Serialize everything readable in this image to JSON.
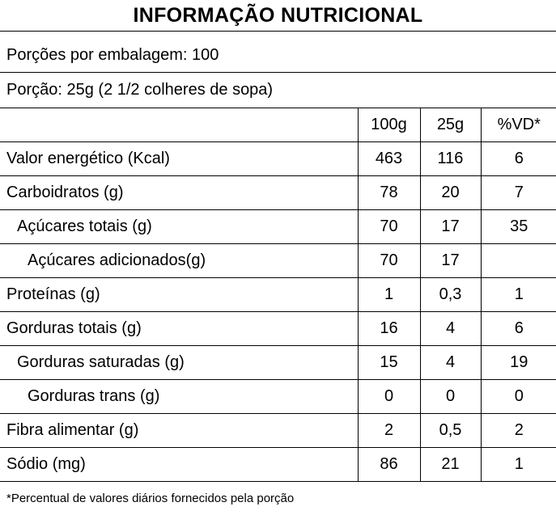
{
  "title": "INFORMAÇÃO NUTRICIONAL",
  "servings_per_package": "Porções por embalagem: 100",
  "serving_size": "Porção: 25g (2 1/2 colheres de sopa)",
  "columns": [
    "",
    "100g",
    "25g",
    "%VD*"
  ],
  "rows": [
    {
      "name": "Valor energético (Kcal)",
      "per100g": "463",
      "per25g": "116",
      "vd": "6"
    },
    {
      "name": "Carboidratos (g)",
      "per100g": "78",
      "per25g": "20",
      "vd": "7"
    },
    {
      "name": "Açúcares totais (g)",
      "per100g": "70",
      "per25g": "17",
      "vd": "35"
    },
    {
      "name": "Açúcares adicionados(g)",
      "per100g": "70",
      "per25g": "17",
      "vd": ""
    },
    {
      "name": "Proteínas (g)",
      "per100g": "1",
      "per25g": "0,3",
      "vd": "1"
    },
    {
      "name": "Gorduras totais (g)",
      "per100g": "16",
      "per25g": "4",
      "vd": "6"
    },
    {
      "name": "Gorduras saturadas (g)",
      "per100g": "15",
      "per25g": "4",
      "vd": "19"
    },
    {
      "name": "Gorduras trans (g)",
      "per100g": "0",
      "per25g": "0",
      "vd": "0"
    },
    {
      "name": "Fibra alimentar (g)",
      "per100g": "2",
      "per25g": "0,5",
      "vd": "2"
    },
    {
      "name": "Sódio (mg)",
      "per100g": "86",
      "per25g": "21",
      "vd": "1"
    }
  ],
  "footnote": "*Percentual de valores diários fornecidos pela porção"
}
